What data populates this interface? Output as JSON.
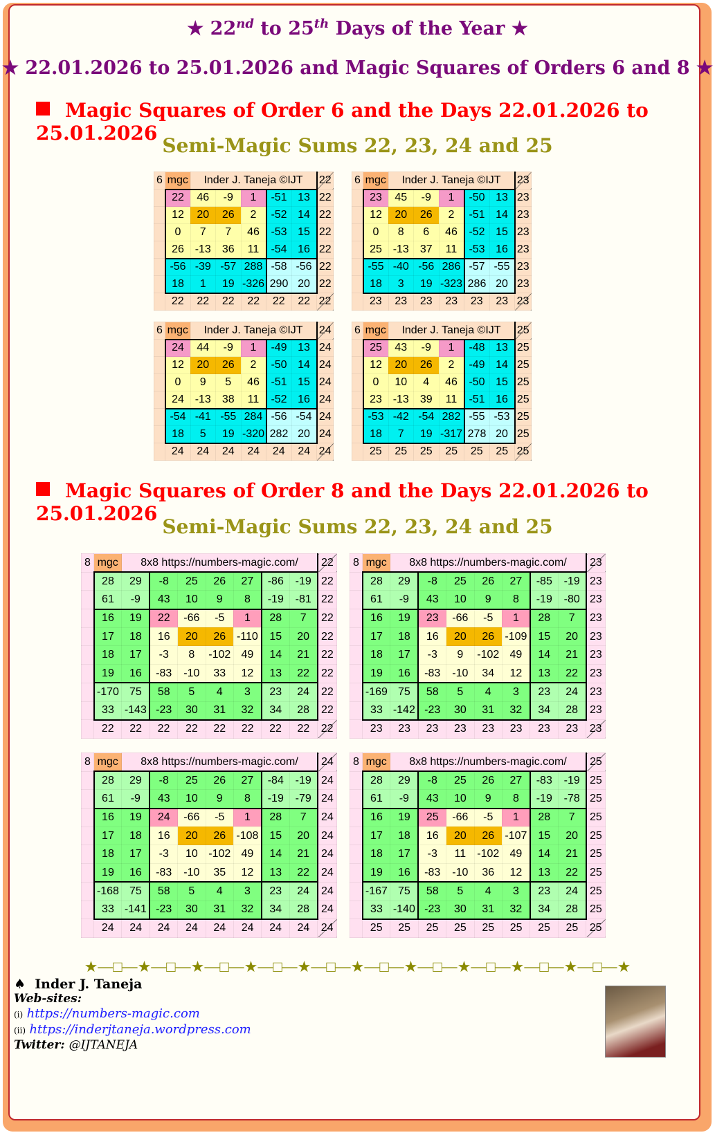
{
  "title_line1": {
    "prefix": "★ 22",
    "sup1": "nd",
    "mid": " to 25",
    "sup2": "th",
    "suffix": " Days of the Year ★"
  },
  "title_line2": "★ 22.01.2026 to 25.01.2026 and Magic Squares of Orders 6 and 8 ★",
  "section6": {
    "heading": "Magic Squares of Order 6 and the Days 22.01.2026 to 25.01.2026",
    "subheading": "Semi-Magic Sums 22, 23, 24 and 25"
  },
  "section8": {
    "heading": "Magic Squares of Order 8 and the Days 22.01.2026 to 25.01.2026",
    "subheading": "Semi-Magic Sums 22, 23, 24 and 25"
  },
  "order6": {
    "order": "6",
    "tag": "mgc",
    "header": "Inder J. Taneja  ©IJT",
    "tables": [
      {
        "sum": "22",
        "rows": [
          [
            22,
            46,
            -9,
            1,
            -51,
            13
          ],
          [
            12,
            20,
            26,
            2,
            -52,
            14
          ],
          [
            0,
            7,
            7,
            46,
            -53,
            15
          ],
          [
            26,
            -13,
            36,
            11,
            -54,
            16
          ],
          [
            -56,
            -39,
            -57,
            288,
            -58,
            -56
          ],
          [
            18,
            1,
            19,
            -326,
            290,
            20
          ]
        ]
      },
      {
        "sum": "23",
        "rows": [
          [
            23,
            45,
            -9,
            1,
            -50,
            13
          ],
          [
            12,
            20,
            26,
            2,
            -51,
            14
          ],
          [
            0,
            8,
            6,
            46,
            -52,
            15
          ],
          [
            25,
            -13,
            37,
            11,
            -53,
            16
          ],
          [
            -55,
            -40,
            -56,
            286,
            -57,
            -55
          ],
          [
            18,
            3,
            19,
            -323,
            286,
            20
          ]
        ]
      },
      {
        "sum": "24",
        "rows": [
          [
            24,
            44,
            -9,
            1,
            -49,
            13
          ],
          [
            12,
            20,
            26,
            2,
            -50,
            14
          ],
          [
            0,
            9,
            5,
            46,
            -51,
            15
          ],
          [
            24,
            -13,
            38,
            11,
            -52,
            16
          ],
          [
            -54,
            -41,
            -55,
            284,
            -56,
            -54
          ],
          [
            18,
            5,
            19,
            -320,
            282,
            20
          ]
        ]
      },
      {
        "sum": "25",
        "rows": [
          [
            25,
            43,
            -9,
            1,
            -48,
            13
          ],
          [
            12,
            20,
            26,
            2,
            -49,
            14
          ],
          [
            0,
            10,
            4,
            46,
            -50,
            15
          ],
          [
            23,
            -13,
            39,
            11,
            -51,
            16
          ],
          [
            -53,
            -42,
            -54,
            282,
            -55,
            -53
          ],
          [
            18,
            7,
            19,
            -317,
            278,
            20
          ]
        ]
      }
    ]
  },
  "order8": {
    "order": "8",
    "tag": "mgc",
    "header": "8x8  https://numbers-magic.com/",
    "tables": [
      {
        "sum": "22",
        "rows": [
          [
            28,
            29,
            -8,
            25,
            26,
            27,
            -86,
            -19
          ],
          [
            61,
            -9,
            43,
            10,
            9,
            8,
            -19,
            -81
          ],
          [
            16,
            19,
            22,
            -66,
            -5,
            1,
            28,
            7
          ],
          [
            17,
            18,
            16,
            20,
            26,
            -110,
            15,
            20
          ],
          [
            18,
            17,
            -3,
            8,
            -102,
            49,
            14,
            21
          ],
          [
            19,
            16,
            -83,
            -10,
            33,
            12,
            13,
            22
          ],
          [
            -170,
            75,
            58,
            5,
            4,
            3,
            23,
            24
          ],
          [
            33,
            -143,
            -23,
            30,
            31,
            32,
            34,
            28
          ]
        ]
      },
      {
        "sum": "23",
        "rows": [
          [
            28,
            29,
            -8,
            25,
            26,
            27,
            -85,
            -19
          ],
          [
            61,
            -9,
            43,
            10,
            9,
            8,
            -19,
            -80
          ],
          [
            16,
            19,
            23,
            -66,
            -5,
            1,
            28,
            7
          ],
          [
            17,
            18,
            16,
            20,
            26,
            -109,
            15,
            20
          ],
          [
            18,
            17,
            -3,
            9,
            -102,
            49,
            14,
            21
          ],
          [
            19,
            16,
            -83,
            -10,
            34,
            12,
            13,
            22
          ],
          [
            -169,
            75,
            58,
            5,
            4,
            3,
            23,
            24
          ],
          [
            33,
            -142,
            -23,
            30,
            31,
            32,
            34,
            28
          ]
        ]
      },
      {
        "sum": "24",
        "rows": [
          [
            28,
            29,
            -8,
            25,
            26,
            27,
            -84,
            -19
          ],
          [
            61,
            -9,
            43,
            10,
            9,
            8,
            -19,
            -79
          ],
          [
            16,
            19,
            24,
            -66,
            -5,
            1,
            28,
            7
          ],
          [
            17,
            18,
            16,
            20,
            26,
            -108,
            15,
            20
          ],
          [
            18,
            17,
            -3,
            10,
            -102,
            49,
            14,
            21
          ],
          [
            19,
            16,
            -83,
            -10,
            35,
            12,
            13,
            22
          ],
          [
            -168,
            75,
            58,
            5,
            4,
            3,
            23,
            24
          ],
          [
            33,
            -141,
            -23,
            30,
            31,
            32,
            34,
            28
          ]
        ]
      },
      {
        "sum": "25",
        "rows": [
          [
            28,
            29,
            -8,
            25,
            26,
            27,
            -83,
            -19
          ],
          [
            61,
            -9,
            43,
            10,
            9,
            8,
            -19,
            -78
          ],
          [
            16,
            19,
            25,
            -66,
            -5,
            1,
            28,
            7
          ],
          [
            17,
            18,
            16,
            20,
            26,
            -107,
            15,
            20
          ],
          [
            18,
            17,
            -3,
            11,
            -102,
            49,
            14,
            21
          ],
          [
            19,
            16,
            -83,
            -10,
            36,
            12,
            13,
            22
          ],
          [
            -167,
            75,
            58,
            5,
            4,
            3,
            23,
            24
          ],
          [
            33,
            -140,
            -23,
            30,
            31,
            32,
            34,
            28
          ]
        ]
      }
    ]
  },
  "colors": {
    "yellow": "#ffffaa",
    "cyan": "#00f0f0",
    "light_cyan": "#c0ffff",
    "pink": "#f59ac8",
    "orange": "#f5b800",
    "peach": "#fde0c6",
    "mgc": "#fbb273",
    "green": "#80ff80",
    "light_green": "#b0ffb0",
    "pale_yellow": "#ffffd4",
    "pink_bg": "#ffe0f0",
    "pink8": "#ff9ebb"
  },
  "divider": "★—□—★—□—★—□—★—□—★—□—★—□—★—□—★—□—★—□—★—□—★",
  "footer": {
    "spade": "♠",
    "author": "Inder J. Taneja",
    "websites_label": "Web-sites:",
    "site1_prefix": "(i)",
    "site1": "https://numbers-magic.com",
    "site2_prefix": "(ii)",
    "site2": "https://inderjtaneja.wordpress.com",
    "twitter_label": "Twitter:",
    "twitter": "@IJTANEJA"
  }
}
